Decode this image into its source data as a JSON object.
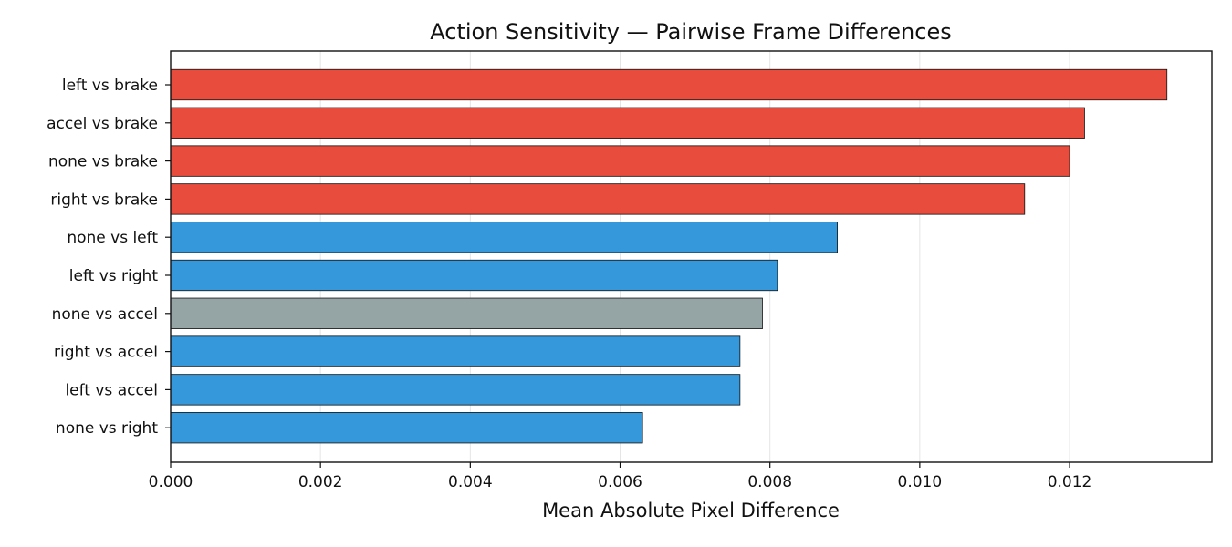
{
  "chart_data": {
    "type": "bar",
    "orientation": "horizontal",
    "title": "Action Sensitivity — Pairwise Frame Differences",
    "xlabel": "Mean Absolute Pixel Difference",
    "ylabel": "",
    "xlim": [
      0,
      0.0139
    ],
    "x_ticks": [
      0.0,
      0.002,
      0.004,
      0.006,
      0.008,
      0.01,
      0.012
    ],
    "x_tick_labels": [
      "0.000",
      "0.002",
      "0.004",
      "0.006",
      "0.008",
      "0.010",
      "0.012"
    ],
    "grid": "vertical",
    "legend": "none",
    "categories": [
      "left vs brake",
      "accel vs brake",
      "none vs brake",
      "right vs brake",
      "none vs left",
      "left vs right",
      "none vs accel",
      "right vs accel",
      "left vs accel",
      "none vs right"
    ],
    "values": [
      0.0133,
      0.0122,
      0.012,
      0.0114,
      0.0089,
      0.0081,
      0.0079,
      0.0076,
      0.0076,
      0.0063
    ],
    "bar_colors": [
      "#e74c3c",
      "#e74c3c",
      "#e74c3c",
      "#e74c3c",
      "#3498db",
      "#3498db",
      "#95a5a6",
      "#3498db",
      "#3498db",
      "#3498db"
    ],
    "edge_color": "#111111",
    "grid_color": "#e5e5e5"
  }
}
